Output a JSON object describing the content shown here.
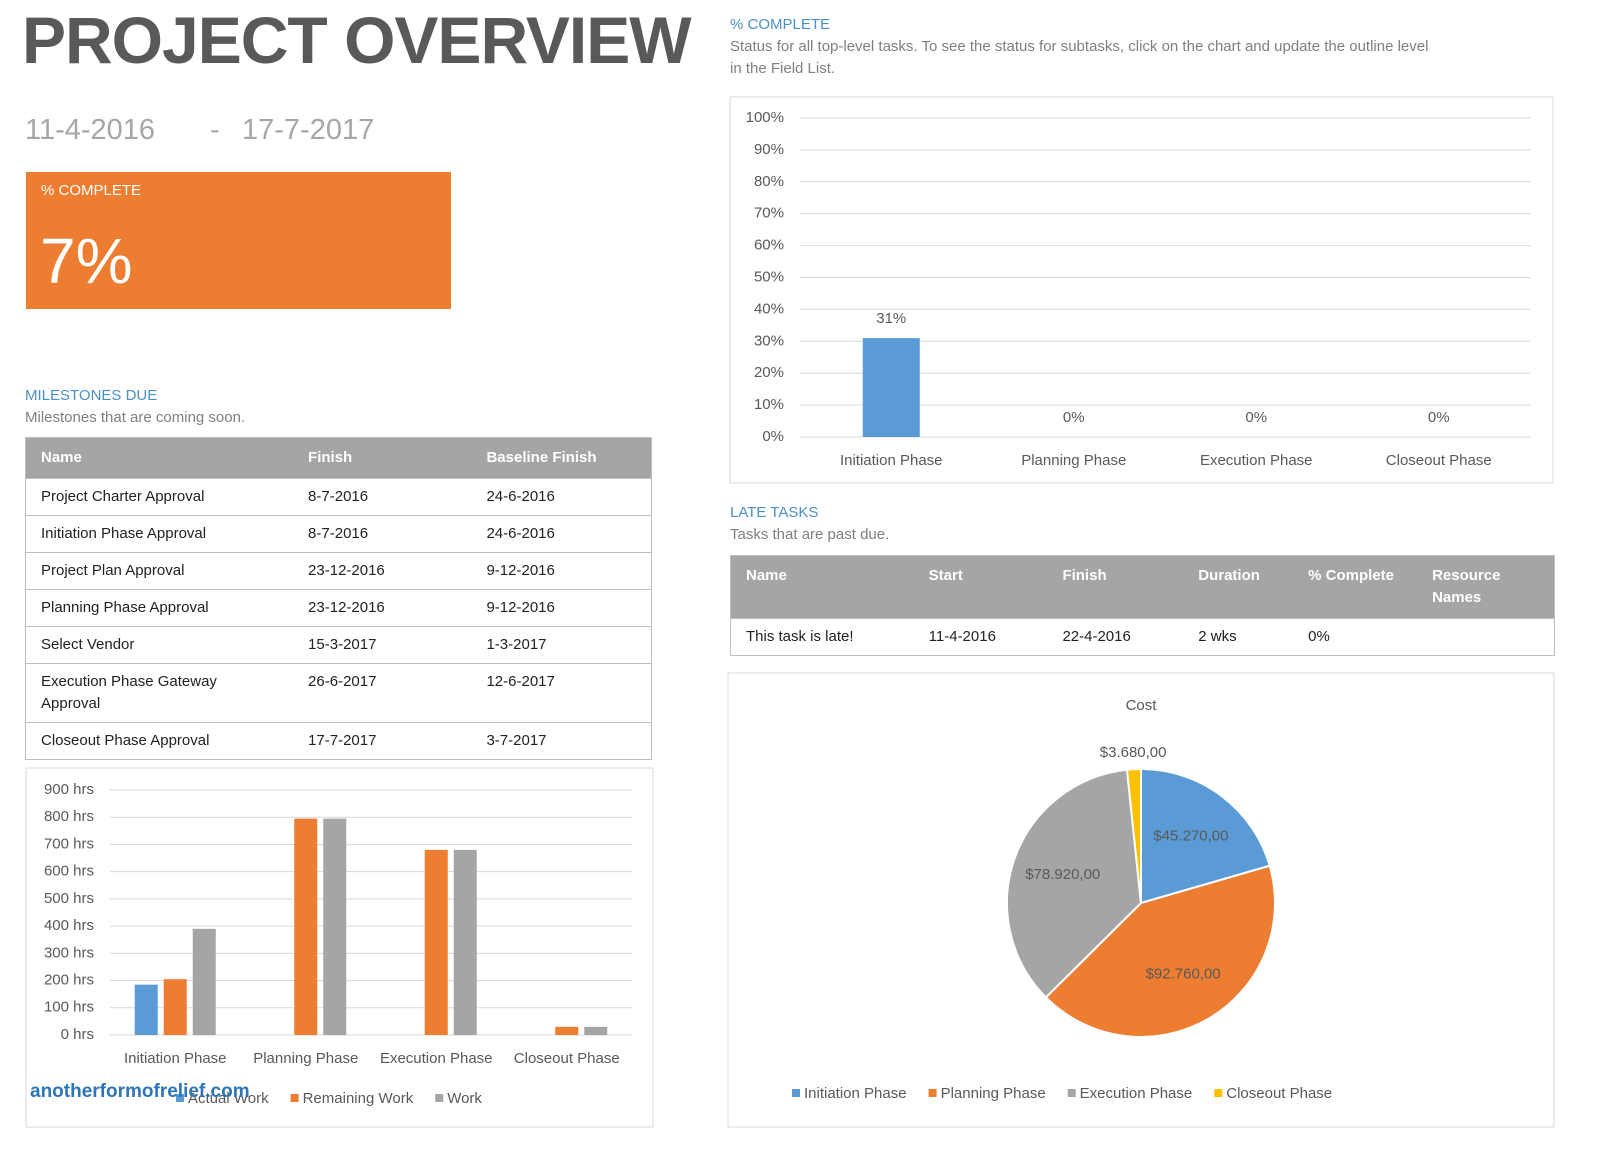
{
  "header": {
    "title": "PROJECT OVERVIEW",
    "start_date": "11-4-2016",
    "separator": "-",
    "end_date": "17-7-2017"
  },
  "complete_card": {
    "label": "% COMPLETE",
    "value": "7%"
  },
  "milestones": {
    "title": "MILESTONES DUE",
    "subtitle": "Milestones that are coming soon.",
    "columns": [
      "Name",
      "Finish",
      "Baseline Finish"
    ],
    "rows": [
      [
        "Project Charter Approval",
        "8-7-2016",
        "24-6-2016"
      ],
      [
        "Initiation Phase Approval",
        "8-7-2016",
        "24-6-2016"
      ],
      [
        "Project Plan Approval",
        "23-12-2016",
        "9-12-2016"
      ],
      [
        "Planning Phase Approval",
        "23-12-2016",
        "9-12-2016"
      ],
      [
        "Select Vendor",
        "15-3-2017",
        "1-3-2017"
      ],
      [
        "Execution Phase Gateway Approval",
        "26-6-2017",
        "12-6-2017"
      ],
      [
        "Closeout Phase Approval",
        "17-7-2017",
        "3-7-2017"
      ]
    ]
  },
  "late_tasks": {
    "title": "LATE TASKS",
    "subtitle": "Tasks that are past due.",
    "columns": [
      "Name",
      "Start",
      "Finish",
      "Duration",
      "% Complete",
      "Resource Names"
    ],
    "rows": [
      [
        "This task is late!",
        "11-4-2016",
        "22-4-2016",
        "2 wks",
        "0%",
        ""
      ]
    ]
  },
  "watermark": "anotherformofrelief.com",
  "chart_data": [
    {
      "type": "bar",
      "title": "% COMPLETE",
      "subtitle": "Status for all top-level tasks. To see the status for subtasks, click on the chart and update the outline level in the Field List.",
      "categories": [
        "Initiation Phase",
        "Planning Phase",
        "Execution Phase",
        "Closeout Phase"
      ],
      "values": [
        31,
        0,
        0,
        0
      ],
      "value_labels": [
        "31%",
        "0%",
        "0%",
        "0%"
      ],
      "color": "#5b9bd5",
      "ylim": [
        0,
        100
      ],
      "yticks": [
        {
          "value": 0,
          "label": "0%"
        },
        {
          "value": 10,
          "label": "10%"
        },
        {
          "value": 20,
          "label": "20%"
        },
        {
          "value": 30,
          "label": "30%"
        },
        {
          "value": 40,
          "label": "40%"
        },
        {
          "value": 50,
          "label": "50%"
        },
        {
          "value": 60,
          "label": "60%"
        },
        {
          "value": 70,
          "label": "70%"
        },
        {
          "value": 80,
          "label": "80%"
        },
        {
          "value": 90,
          "label": "90%"
        },
        {
          "value": 100,
          "label": "100%"
        }
      ],
      "grid": true
    },
    {
      "type": "bar",
      "categories": [
        "Initiation Phase",
        "Planning Phase",
        "Execution Phase",
        "Closeout Phase"
      ],
      "series": [
        {
          "name": "Actual Work",
          "color": "#5b9bd5",
          "values": [
            185,
            0,
            0,
            0
          ]
        },
        {
          "name": "Remaining Work",
          "color": "#ed7d31",
          "values": [
            205,
            795,
            680,
            30
          ]
        },
        {
          "name": "Work",
          "color": "#a5a5a5",
          "values": [
            390,
            795,
            680,
            30
          ]
        }
      ],
      "ylim": [
        0,
        900
      ],
      "yticks": [
        {
          "value": 0,
          "label": "0 hrs"
        },
        {
          "value": 100,
          "label": "100 hrs"
        },
        {
          "value": 200,
          "label": "200 hrs"
        },
        {
          "value": 300,
          "label": "300 hrs"
        },
        {
          "value": 400,
          "label": "400 hrs"
        },
        {
          "value": 500,
          "label": "500 hrs"
        },
        {
          "value": 600,
          "label": "600 hrs"
        },
        {
          "value": 700,
          "label": "700 hrs"
        },
        {
          "value": 800,
          "label": "800 hrs"
        },
        {
          "value": 900,
          "label": "900 hrs"
        }
      ],
      "grid": true,
      "legend": "bottom"
    },
    {
      "type": "pie",
      "title": "Cost",
      "categories": [
        "Initiation Phase",
        "Planning Phase",
        "Execution Phase",
        "Closeout Phase"
      ],
      "values": [
        45270,
        92760,
        78920,
        3680
      ],
      "value_labels": [
        "$45.270,00",
        "$92.760,00",
        "$78.920,00",
        "$3.680,00"
      ],
      "colors": [
        "#5b9bd5",
        "#ed7d31",
        "#a5a5a5",
        "#ffc000"
      ],
      "legend": "bottom"
    }
  ]
}
